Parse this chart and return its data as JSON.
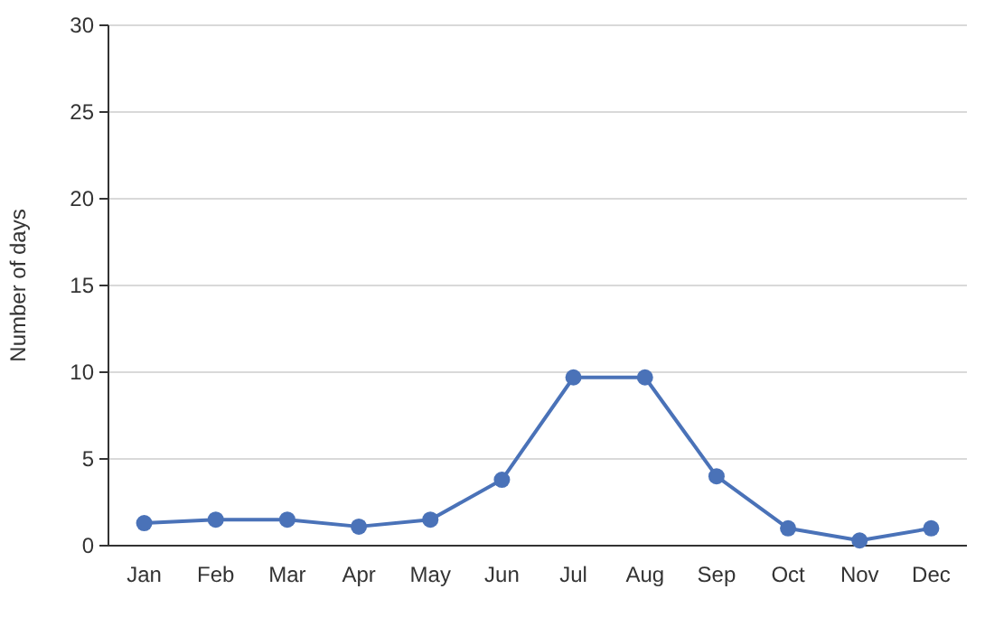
{
  "chart_data": {
    "type": "line",
    "ylabel": "Number of days",
    "categories": [
      "Jan",
      "Feb",
      "Mar",
      "Apr",
      "May",
      "Jun",
      "Jul",
      "Aug",
      "Sep",
      "Oct",
      "Nov",
      "Dec"
    ],
    "series": [
      {
        "color": "#4a72b8",
        "values": [
          1.3,
          1.5,
          1.5,
          1.1,
          1.5,
          3.8,
          9.7,
          9.7,
          4.0,
          1.0,
          0.3,
          1.0
        ]
      }
    ],
    "ylim": [
      0,
      30
    ],
    "yticks": [
      0,
      5,
      10,
      15,
      20,
      25,
      30
    ],
    "grid": "y",
    "marker": "circle",
    "line_style": "solid"
  }
}
